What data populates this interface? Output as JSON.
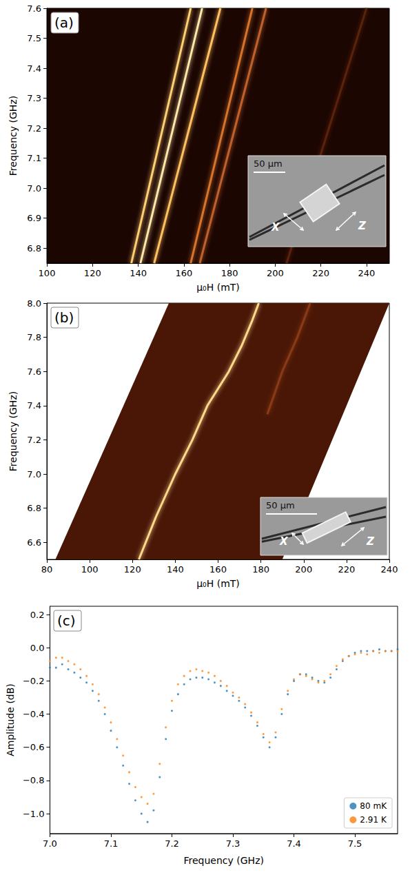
{
  "chart_data": [
    {
      "type": "line",
      "title": "(a)",
      "x_label": "μ₀H (mT)",
      "y_label": "Frequency (GHz)",
      "xlim": [
        100,
        250
      ],
      "xticks": [
        100,
        120,
        140,
        160,
        180,
        200,
        220,
        240
      ],
      "ylim": [
        6.75,
        7.6
      ],
      "yticks": [
        6.8,
        6.9,
        {
          "value": 7,
          "label": "7.0"
        },
        7.1,
        7.2,
        7.3,
        7.4,
        7.5,
        7.6
      ],
      "grid": false,
      "series": [
        {
          "color": "#ffcf73",
          "x": [
            137,
            150,
            163
          ],
          "values": [
            6.75,
            7.175,
            7.6
          ]
        },
        {
          "color": "#ffe7a8",
          "x": [
            141,
            154.5,
            168
          ],
          "values": [
            6.75,
            7.175,
            7.6
          ]
        },
        {
          "color": "#ffc060",
          "x": [
            147,
            161.5,
            176
          ],
          "values": [
            6.75,
            7.175,
            7.6
          ]
        },
        {
          "color": "#d8742c",
          "x": [
            163,
            176.5,
            190
          ],
          "values": [
            6.75,
            7.175,
            7.6
          ]
        },
        {
          "color": "#c0602a",
          "x": [
            167,
            181.5,
            196
          ],
          "values": [
            6.75,
            7.175,
            7.6
          ]
        },
        {
          "color": "#5a2410",
          "x": [
            205,
            222.5,
            240
          ],
          "values": [
            6.75,
            7.175,
            7.6
          ]
        }
      ],
      "inset": {
        "scale_bar": "50 μm",
        "labels": [
          "X",
          "Z"
        ]
      }
    },
    {
      "type": "line",
      "title": "(b)",
      "x_label": "μ₀H (mT)",
      "y_label": "Frequency (GHz)",
      "xlim": [
        80,
        240
      ],
      "xticks": [
        80,
        100,
        120,
        140,
        160,
        180,
        200,
        220,
        240
      ],
      "ylim": [
        6.5,
        8.0
      ],
      "yticks": [
        6.6,
        6.8,
        {
          "value": 7,
          "label": "7.0"
        },
        7.2,
        7.4,
        7.6,
        7.8,
        {
          "value": 8,
          "label": "8.0"
        }
      ],
      "grid": false,
      "scan_region": [
        [
          84,
          6.5
        ],
        [
          190,
          6.5
        ],
        [
          240,
          8.0
        ],
        [
          137,
          8.0
        ]
      ],
      "series": [
        {
          "color": "#ffd98a",
          "x": [
            123,
            131,
            140,
            148,
            155,
            160,
            165,
            171,
            176,
            179
          ],
          "values": [
            6.5,
            6.75,
            7.0,
            7.2,
            7.4,
            7.5,
            7.6,
            7.75,
            7.9,
            8.0
          ]
        },
        {
          "color": "#8a3a18",
          "x": [
            183,
            190,
            197,
            203
          ],
          "values": [
            7.35,
            7.6,
            7.8,
            8.0
          ]
        }
      ],
      "inset": {
        "scale_bar": "50 μm",
        "labels": [
          "X",
          "Z"
        ]
      }
    },
    {
      "type": "scatter",
      "title": "(c)",
      "x_label": "Frequency (GHz)",
      "y_label": "Amplitude (dB)",
      "xlim": [
        7.0,
        7.57
      ],
      "xticks": [
        {
          "value": 7,
          "label": "7.0"
        },
        7.1,
        7.2,
        7.3,
        7.4,
        7.5
      ],
      "ylim": [
        -1.12,
        0.25
      ],
      "yticks": [
        {
          "value": -1,
          "label": "−1.0"
        },
        {
          "value": -0.8,
          "label": "−0.8"
        },
        {
          "value": -0.6,
          "label": "−0.6"
        },
        {
          "value": -0.4,
          "label": "−0.4"
        },
        {
          "value": -0.2,
          "label": "−0.2"
        },
        {
          "value": 0,
          "label": "0.0"
        },
        0.2
      ],
      "grid": false,
      "legend": "lower right",
      "marker": "circle",
      "x": [
        7,
        7.01,
        7.02,
        7.03,
        7.04,
        7.05,
        7.06,
        7.07,
        7.08,
        7.09,
        7.1,
        7.11,
        7.12,
        7.13,
        7.14,
        7.15,
        7.16,
        7.17,
        7.18,
        7.19,
        7.2,
        7.21,
        7.22,
        7.23,
        7.24,
        7.25,
        7.26,
        7.27,
        7.28,
        7.29,
        7.3,
        7.31,
        7.32,
        7.33,
        7.34,
        7.35,
        7.36,
        7.37,
        7.38,
        7.39,
        7.4,
        7.41,
        7.42,
        7.43,
        7.44,
        7.45,
        7.46,
        7.47,
        7.48,
        7.49,
        7.5,
        7.51,
        7.52,
        7.53,
        7.54,
        7.55,
        7.56,
        7.57
      ],
      "series": [
        {
          "name": "80 mK",
          "color": "#1f77b4",
          "values": [
            -0.12,
            -0.12,
            -0.1,
            -0.13,
            -0.15,
            -0.18,
            -0.21,
            -0.26,
            -0.32,
            -0.4,
            -0.5,
            -0.6,
            -0.71,
            -0.82,
            -0.92,
            -1.0,
            -1.05,
            -0.98,
            -0.78,
            -0.55,
            -0.38,
            -0.28,
            -0.22,
            -0.19,
            -0.18,
            -0.18,
            -0.19,
            -0.21,
            -0.23,
            -0.26,
            -0.29,
            -0.32,
            -0.36,
            -0.41,
            -0.47,
            -0.54,
            -0.6,
            -0.54,
            -0.4,
            -0.28,
            -0.2,
            -0.16,
            -0.16,
            -0.18,
            -0.2,
            -0.21,
            -0.18,
            -0.13,
            -0.08,
            -0.05,
            -0.03,
            -0.02,
            -0.02,
            -0.02,
            -0.01,
            -0.02,
            -0.02,
            -0.01
          ]
        },
        {
          "name": "2.91 K",
          "color": "#ff7f0e",
          "values": [
            -0.08,
            -0.06,
            -0.06,
            -0.08,
            -0.1,
            -0.13,
            -0.17,
            -0.22,
            -0.28,
            -0.36,
            -0.45,
            -0.55,
            -0.65,
            -0.75,
            -0.84,
            -0.9,
            -0.94,
            -0.88,
            -0.7,
            -0.48,
            -0.32,
            -0.22,
            -0.17,
            -0.14,
            -0.13,
            -0.14,
            -0.15,
            -0.17,
            -0.2,
            -0.23,
            -0.27,
            -0.3,
            -0.34,
            -0.39,
            -0.45,
            -0.52,
            -0.57,
            -0.51,
            -0.37,
            -0.26,
            -0.19,
            -0.16,
            -0.17,
            -0.19,
            -0.21,
            -0.2,
            -0.16,
            -0.11,
            -0.07,
            -0.05,
            -0.04,
            -0.03,
            -0.04,
            -0.02,
            -0.03,
            -0.02,
            -0.02,
            -0.02
          ]
        }
      ]
    }
  ]
}
